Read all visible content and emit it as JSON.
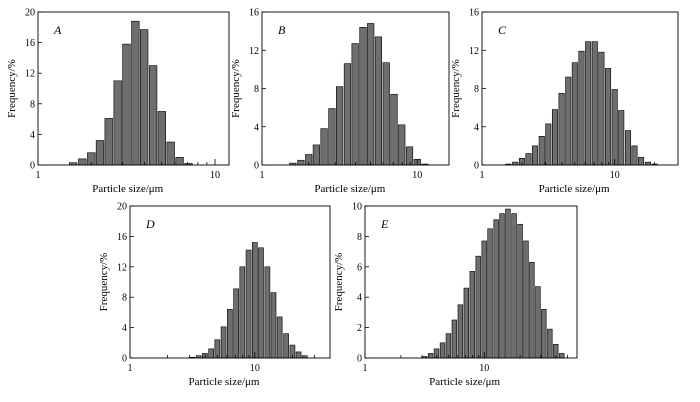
{
  "chart_data": [
    {
      "type": "bar",
      "title": "A",
      "xlabel": "Particle size/μm",
      "ylabel": "Frequency/%",
      "xscale": "log",
      "xlim": [
        1,
        12
      ],
      "ylim": [
        0,
        20
      ],
      "xticks": [
        1,
        10
      ],
      "yticks": [
        0,
        4,
        8,
        12,
        16,
        20
      ],
      "x": [
        1.58,
        1.78,
        2.0,
        2.24,
        2.51,
        2.82,
        3.16,
        3.55,
        3.98,
        4.47,
        5.01,
        5.62,
        6.31,
        7.08,
        7.94
      ],
      "values": [
        0.3,
        0.8,
        1.6,
        3.2,
        6.1,
        11.0,
        15.8,
        18.8,
        17.7,
        13.0,
        7.0,
        3.0,
        1.0,
        0.2,
        0.0
      ]
    },
    {
      "type": "bar",
      "title": "B",
      "xlabel": "Particle size/μm",
      "ylabel": "Frequency/%",
      "xscale": "log",
      "xlim": [
        1,
        16
      ],
      "ylim": [
        0,
        16
      ],
      "xticks": [
        1,
        10
      ],
      "yticks": [
        0,
        4,
        8,
        12,
        16
      ],
      "x": [
        1.58,
        1.78,
        2.0,
        2.24,
        2.51,
        2.82,
        3.16,
        3.55,
        3.98,
        4.47,
        5.01,
        5.62,
        6.31,
        7.08,
        7.94,
        8.91,
        10.0,
        11.2,
        12.6
      ],
      "values": [
        0.2,
        0.5,
        1.1,
        2.1,
        3.8,
        5.9,
        8.2,
        10.6,
        12.7,
        14.4,
        14.8,
        13.4,
        10.7,
        7.4,
        4.2,
        1.9,
        0.6,
        0.1,
        0.0
      ]
    },
    {
      "type": "bar",
      "title": "C",
      "xlabel": "Particle size/μm",
      "ylabel": "Frequency/%",
      "xscale": "log",
      "xlim": [
        1,
        30
      ],
      "ylim": [
        0,
        16
      ],
      "xticks": [
        1,
        10
      ],
      "yticks": [
        0,
        4,
        8,
        12,
        16
      ],
      "x": [
        1.58,
        1.78,
        2.0,
        2.24,
        2.51,
        2.82,
        3.16,
        3.55,
        3.98,
        4.47,
        5.01,
        5.62,
        6.31,
        7.08,
        7.94,
        8.91,
        10.0,
        11.2,
        12.6,
        14.1,
        15.8,
        17.8,
        20.0,
        22.4
      ],
      "values": [
        0.1,
        0.3,
        0.7,
        1.2,
        2.0,
        3.0,
        4.3,
        5.8,
        7.5,
        9.2,
        10.7,
        11.9,
        12.9,
        12.9,
        11.8,
        10.1,
        7.9,
        5.7,
        3.6,
        2.0,
        0.8,
        0.3,
        0.1,
        0.0
      ]
    },
    {
      "type": "bar",
      "title": "D",
      "xlabel": "Particle size/μm",
      "ylabel": "Frequency/%",
      "xscale": "log",
      "xlim": [
        1,
        40
      ],
      "ylim": [
        0,
        20
      ],
      "xticks": [
        1,
        10
      ],
      "yticks": [
        0,
        4,
        8,
        12,
        16,
        20
      ],
      "x": [
        3.16,
        3.55,
        3.98,
        4.47,
        5.01,
        5.62,
        6.31,
        7.08,
        7.94,
        8.91,
        10.0,
        11.2,
        12.6,
        14.1,
        15.8,
        17.8,
        20.0,
        22.4,
        25.1
      ],
      "values": [
        0.1,
        0.3,
        0.6,
        1.2,
        2.4,
        4.1,
        6.4,
        9.1,
        12.0,
        14.2,
        15.2,
        14.5,
        12.0,
        8.6,
        5.4,
        3.2,
        1.7,
        0.8,
        0.3
      ]
    },
    {
      "type": "bar",
      "title": "E",
      "xlabel": "Particle size/μm",
      "ylabel": "Frequency/%",
      "xscale": "log",
      "xlim": [
        1,
        60
      ],
      "ylim": [
        0,
        10
      ],
      "xticks": [
        1,
        10
      ],
      "yticks": [
        0,
        2,
        4,
        6,
        8,
        10
      ],
      "x": [
        3.16,
        3.55,
        3.98,
        4.47,
        5.01,
        5.62,
        6.31,
        7.08,
        7.94,
        8.91,
        10.0,
        11.2,
        12.6,
        14.1,
        15.8,
        17.8,
        20.0,
        22.4,
        25.1,
        28.2,
        31.6,
        35.5,
        39.8,
        44.7
      ],
      "values": [
        0.1,
        0.3,
        0.6,
        1.0,
        1.6,
        2.5,
        3.5,
        4.6,
        5.7,
        6.7,
        7.7,
        8.5,
        9.1,
        9.5,
        9.8,
        9.5,
        8.8,
        7.7,
        6.3,
        4.7,
        3.2,
        1.9,
        0.9,
        0.3
      ]
    }
  ]
}
